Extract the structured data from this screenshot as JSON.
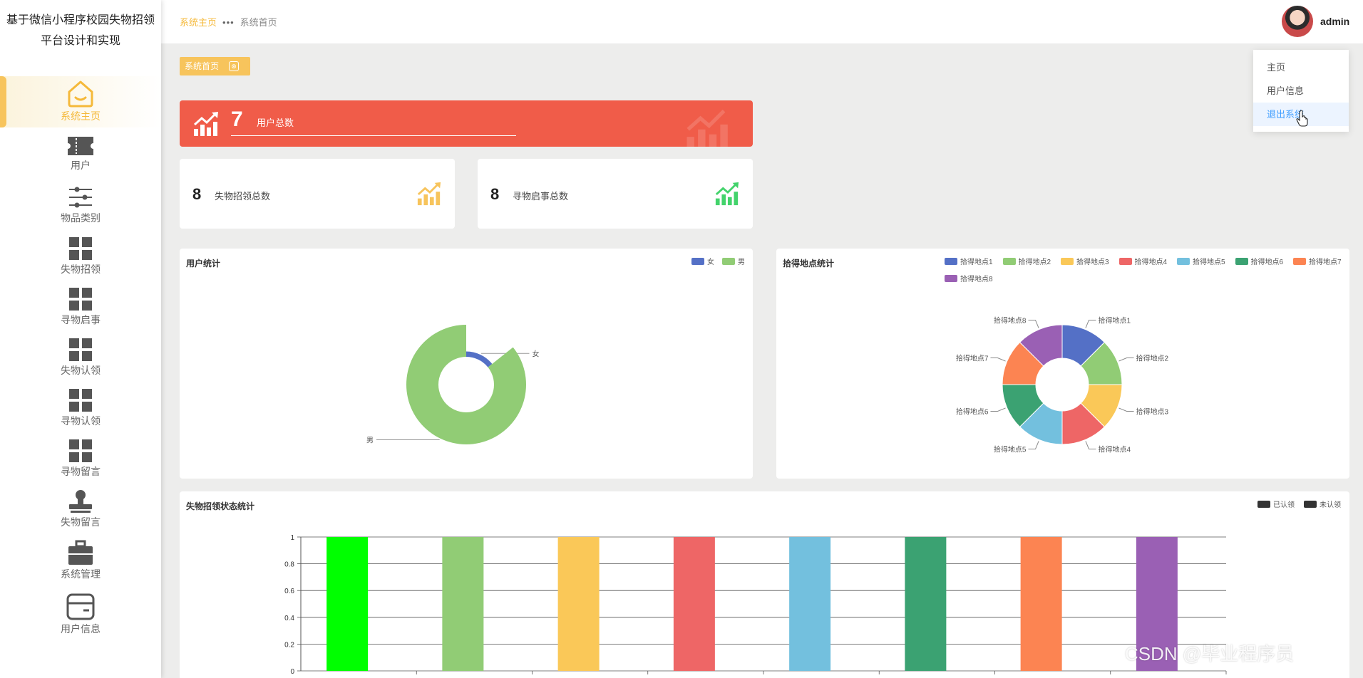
{
  "app": {
    "title": "基于微信小程序校园失物招领平台设计和实现"
  },
  "sidebar": {
    "items": [
      {
        "label": "系统主页",
        "icon": "home-icon",
        "active": true
      },
      {
        "label": "用户",
        "icon": "ticket-icon"
      },
      {
        "label": "物品类别",
        "icon": "sliders-icon"
      },
      {
        "label": "失物招领",
        "icon": "grid-icon"
      },
      {
        "label": "寻物启事",
        "icon": "grid-icon"
      },
      {
        "label": "失物认领",
        "icon": "grid-icon"
      },
      {
        "label": "寻物认领",
        "icon": "grid-icon"
      },
      {
        "label": "寻物留言",
        "icon": "grid-icon"
      },
      {
        "label": "失物留言",
        "icon": "stamp-icon"
      },
      {
        "label": "系统管理",
        "icon": "briefcase-icon"
      },
      {
        "label": "用户信息",
        "icon": "card-icon"
      }
    ]
  },
  "header": {
    "breadcrumb": [
      "系统主页",
      "系统首页"
    ],
    "breadcrumb_sep": "•••",
    "username": "admin"
  },
  "dropdown": {
    "items": [
      "主页",
      "用户信息",
      "退出系统"
    ],
    "hovered": "退出系统"
  },
  "tag": {
    "label": "系统首页",
    "close": "⊗"
  },
  "stats": {
    "users": {
      "value": "7",
      "label": "用户总数"
    },
    "lost_found": {
      "value": "8",
      "label": "失物招领总数"
    },
    "seeking": {
      "value": "8",
      "label": "寻物启事总数"
    }
  },
  "colors": {
    "accent": "#f7c45c",
    "banner": "#f05c49",
    "female": "#5470c6",
    "male": "#91cc75",
    "palette": [
      "#5470c6",
      "#91cc75",
      "#fac858",
      "#ee6666",
      "#73c0de",
      "#3ba272",
      "#fc8452",
      "#9a60b4"
    ]
  },
  "chart_data": [
    {
      "type": "pie",
      "title": "用户统计",
      "categories": [
        "女",
        "男"
      ],
      "values": [
        1,
        6
      ],
      "legend_position": "top-right"
    },
    {
      "type": "pie",
      "title": "拾得地点统计",
      "categories": [
        "拾得地点1",
        "拾得地点2",
        "拾得地点3",
        "拾得地点4",
        "拾得地点5",
        "拾得地点6",
        "拾得地点7",
        "拾得地点8"
      ],
      "values": [
        1,
        1,
        1,
        1,
        1,
        1,
        1,
        1
      ],
      "legend_position": "top-right"
    },
    {
      "type": "bar",
      "title": "失物招领状态统计",
      "legend": [
        "已认领",
        "未认领"
      ],
      "yticks": [
        "0",
        "0.2",
        "0.4",
        "0.6",
        "0.8",
        "1"
      ],
      "ylim": [
        0,
        1
      ],
      "grid": true,
      "values": [
        1,
        1,
        1,
        1,
        1,
        1,
        1,
        1
      ],
      "bar_colors": [
        "#00ff00",
        "#91cc75",
        "#fac858",
        "#ee6666",
        "#73c0de",
        "#3ba272",
        "#fc8452",
        "#9a60b4"
      ]
    }
  ],
  "watermark": "CSDN @毕业程序员"
}
